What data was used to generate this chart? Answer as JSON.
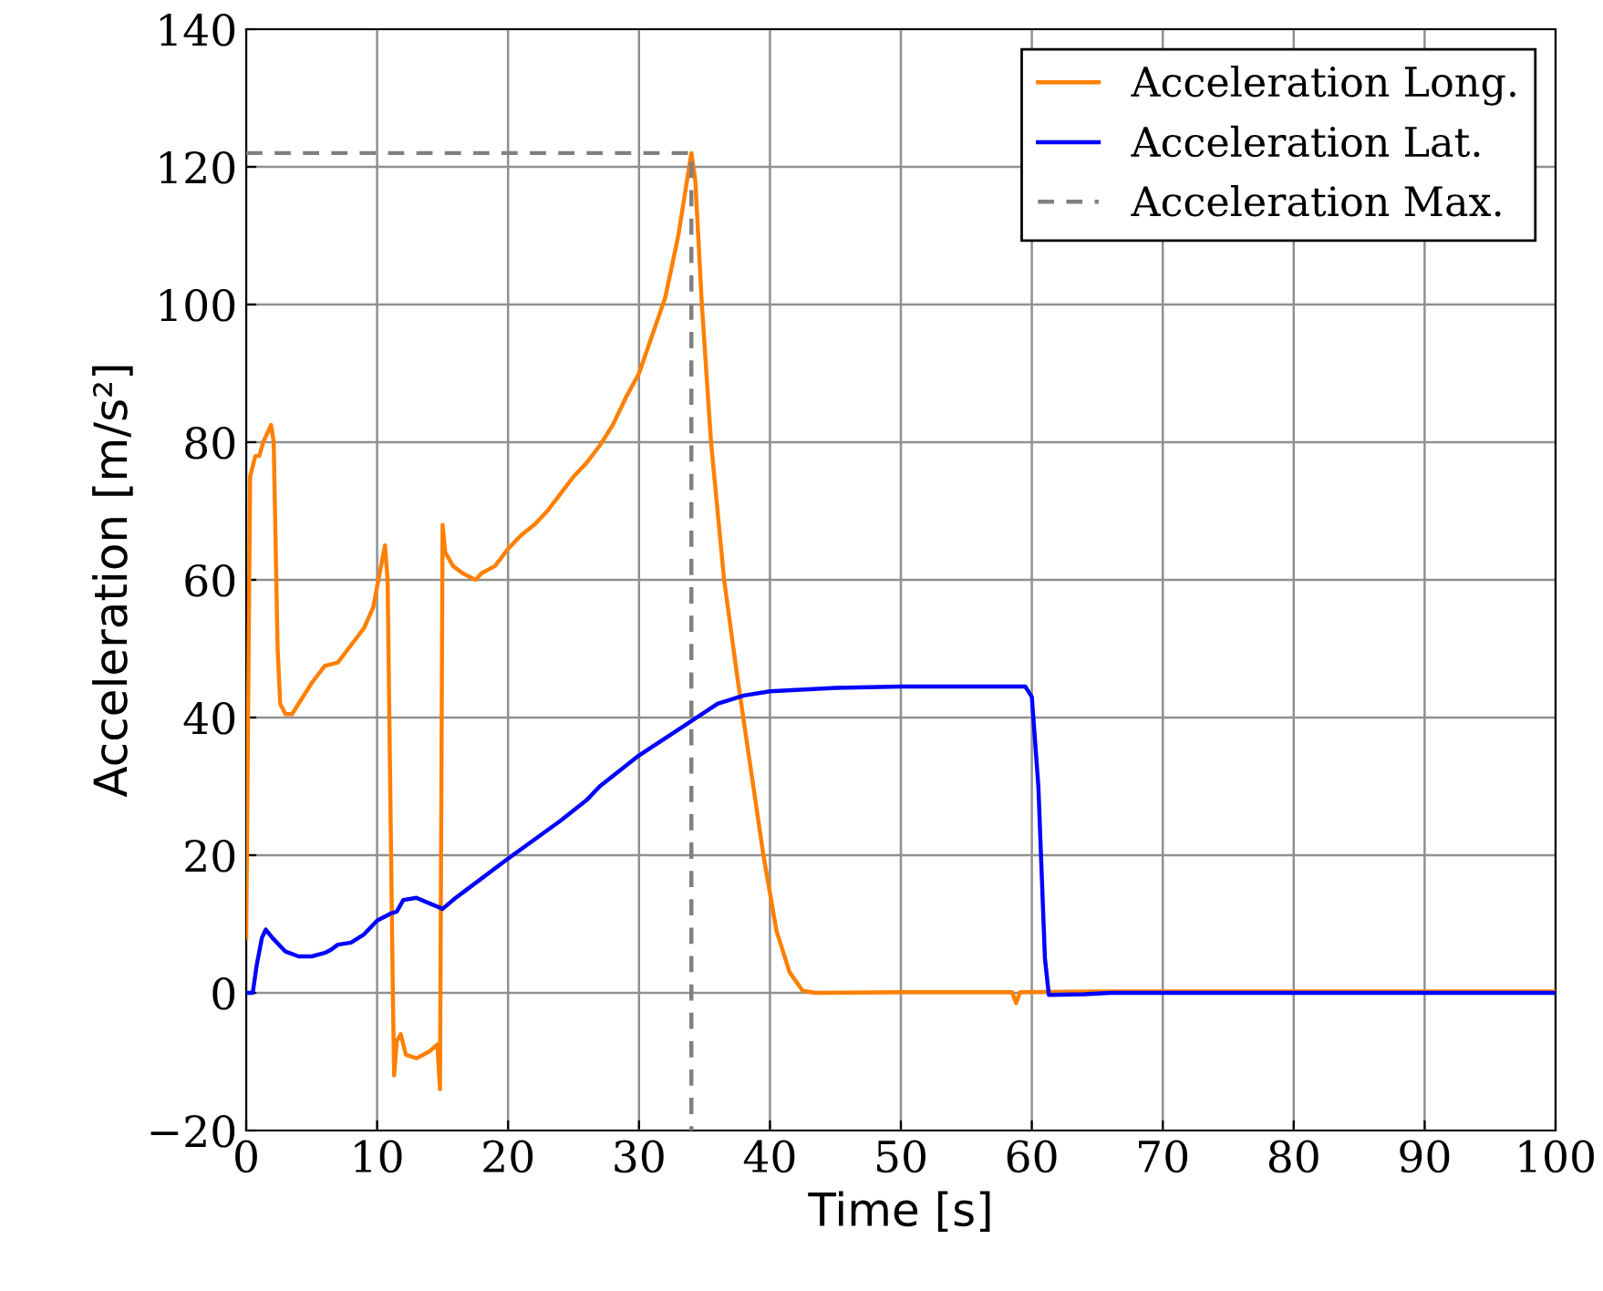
{
  "chart_data": {
    "type": "line",
    "xlabel": "Time [s]",
    "ylabel": "Acceleration [m/s²]",
    "xlim": [
      0,
      100
    ],
    "ylim": [
      -20,
      140
    ],
    "xticks": [
      0,
      10,
      20,
      30,
      40,
      50,
      60,
      70,
      80,
      90,
      100
    ],
    "yticks": [
      {
        "value": -20,
        "label": "−20"
      },
      0,
      20,
      40,
      60,
      80,
      100,
      120,
      140
    ],
    "grid": true,
    "legend": "top right",
    "marker": "none",
    "series": [
      {
        "name": "Acceleration Long.",
        "color": "#ff8000",
        "line_style": "solid",
        "x": [
          0,
          0.3,
          0.7,
          1.0,
          1.3,
          1.9,
          2.1,
          2.4,
          2.6,
          3.0,
          3.5,
          4,
          5,
          6,
          7,
          8,
          9,
          9.7,
          10.2,
          10.6,
          10.8,
          11.0,
          11.2,
          11.3,
          11.5,
          11.8,
          12.2,
          13,
          14,
          14.6,
          14.8,
          15.0,
          15.2,
          15.8,
          16.5,
          17.5,
          18,
          19,
          20,
          21,
          22,
          23,
          24,
          25,
          26,
          27,
          28,
          29,
          30,
          31,
          32,
          33,
          33.5,
          34,
          34.3,
          34.8,
          35.5,
          36.5,
          37.5,
          38.5,
          39.5,
          40.5,
          41.5,
          42.5,
          43.5,
          50,
          58.5,
          58.8,
          59.1,
          65,
          100
        ],
        "values": [
          8,
          75,
          78,
          78,
          80,
          82.5,
          80,
          50,
          42,
          40.5,
          40.5,
          42,
          45,
          47.5,
          48,
          50.5,
          53,
          56,
          61,
          65,
          60,
          30,
          0,
          -12,
          -7,
          -6,
          -9,
          -9.5,
          -8.5,
          -7.5,
          -14,
          68,
          64,
          62,
          61,
          60,
          61,
          62,
          64.5,
          66.5,
          68,
          70,
          72.5,
          75,
          77,
          79.5,
          82.5,
          86.5,
          90,
          95.5,
          101,
          110,
          116,
          122,
          118,
          100,
          80,
          60,
          46,
          33,
          20,
          9,
          3,
          0.3,
          0,
          0.1,
          0.1,
          -1.5,
          0.1,
          0.2,
          0.2
        ]
      },
      {
        "name": "Acceleration Lat.",
        "color": "#0000ff",
        "line_style": "solid",
        "x": [
          0,
          0.5,
          0.8,
          1.2,
          1.5,
          2,
          3,
          4,
          5,
          6,
          6.5,
          7,
          8,
          9,
          10,
          11,
          11.5,
          12,
          13,
          14,
          15,
          16,
          20,
          24,
          26,
          27,
          30,
          34,
          36,
          38,
          40,
          45,
          50,
          59.5,
          60,
          60.5,
          61,
          61.3,
          64,
          66,
          100
        ],
        "values": [
          0,
          0,
          4,
          8,
          9.2,
          8,
          6,
          5.3,
          5.3,
          5.8,
          6.3,
          7,
          7.3,
          8.5,
          10.5,
          11.5,
          11.8,
          13.5,
          13.8,
          13,
          12.2,
          13.8,
          19.5,
          25,
          28,
          30,
          34.5,
          39.5,
          42,
          43.2,
          43.8,
          44.3,
          44.5,
          44.5,
          43,
          30,
          5,
          -0.3,
          -0.2,
          0,
          0
        ]
      },
      {
        "name": "Acceleration Max.",
        "color": "#808080",
        "line_style": "dashed",
        "x": [
          0,
          34,
          34
        ],
        "values": [
          122,
          122,
          -20
        ]
      }
    ]
  }
}
